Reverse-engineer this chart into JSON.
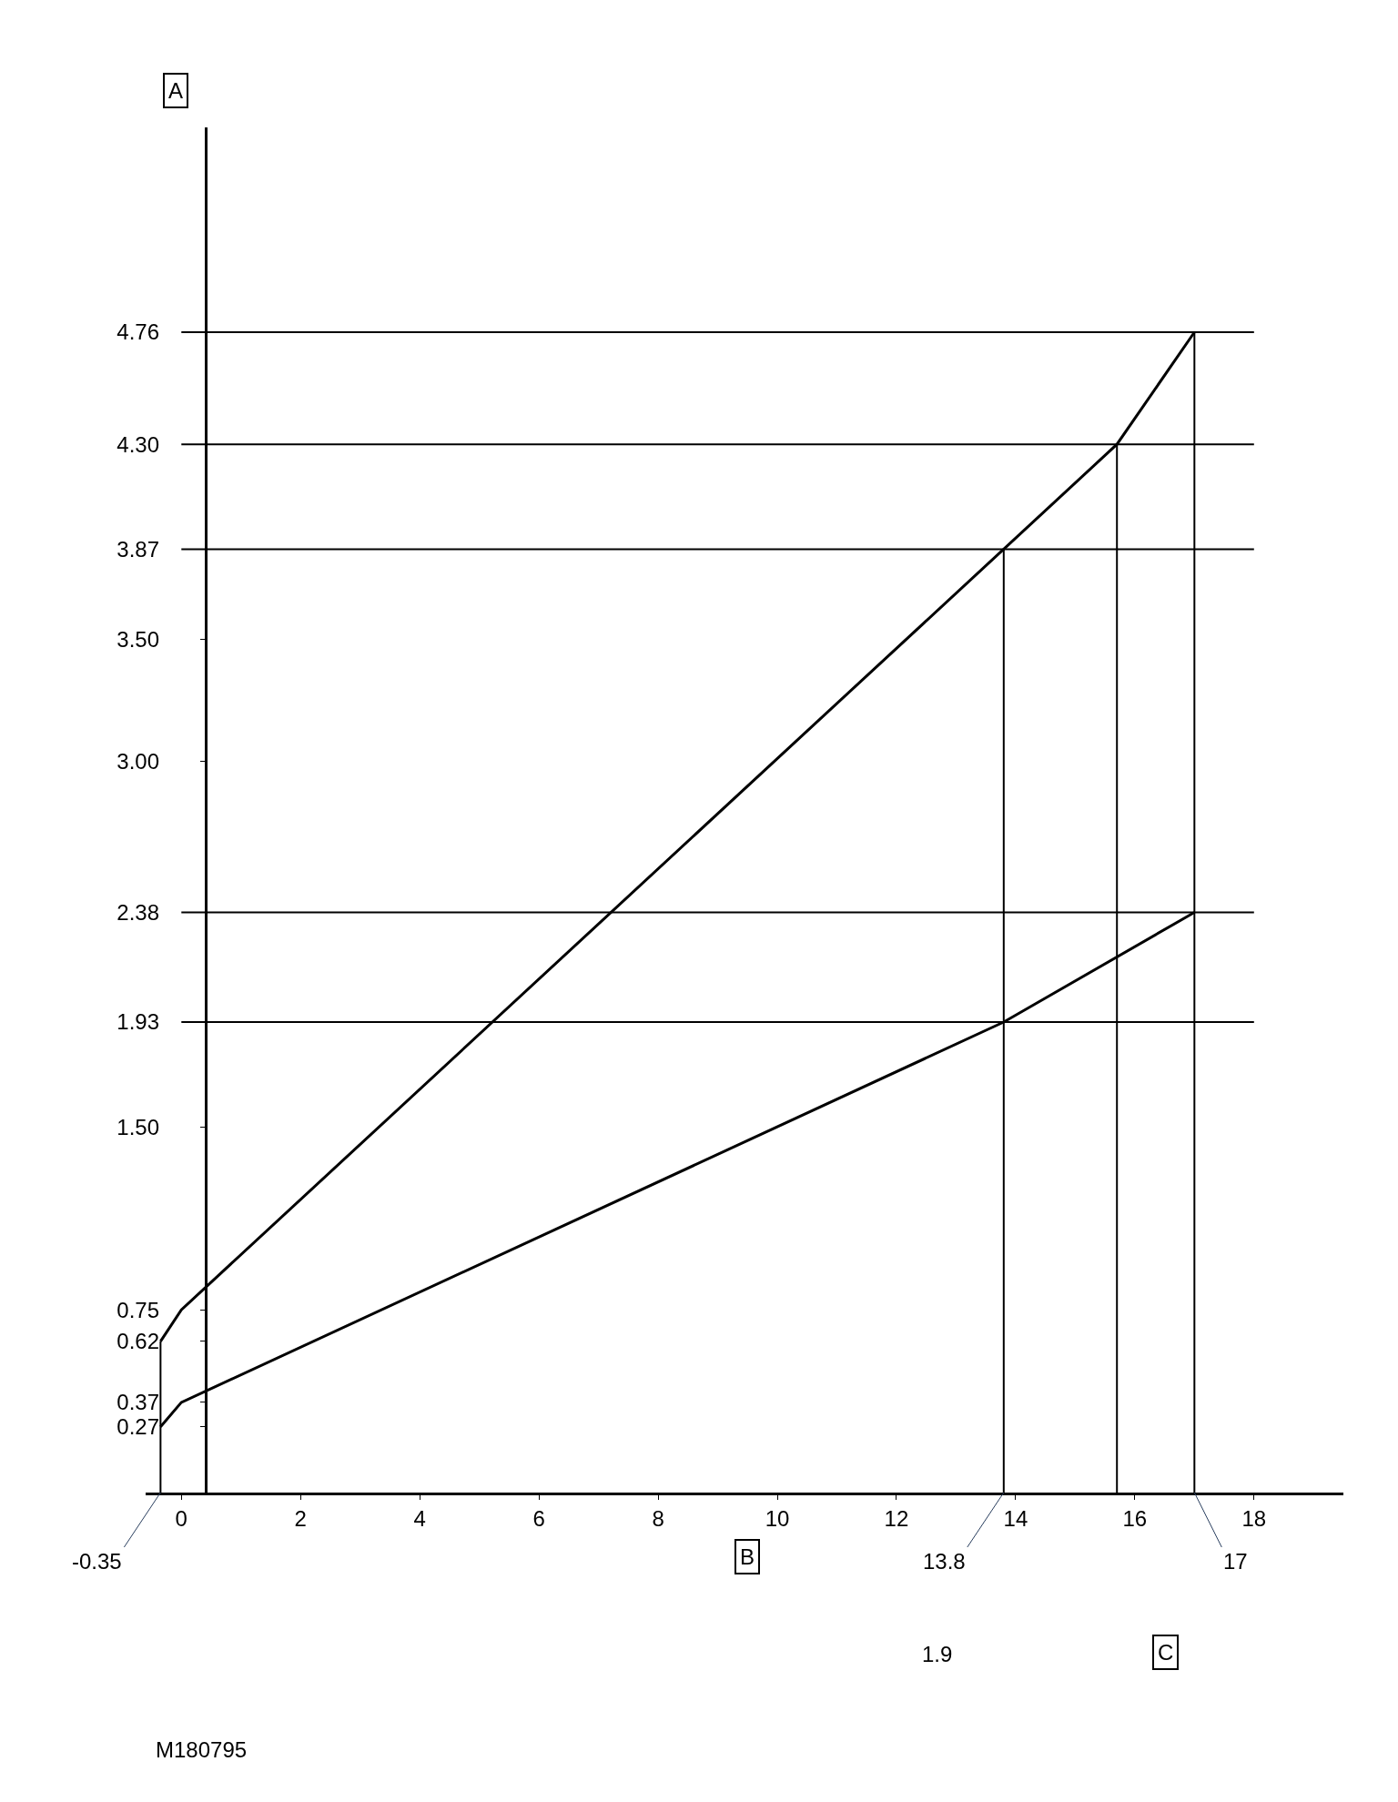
{
  "chart_data": {
    "type": "line",
    "xlabel": "B",
    "ylabel": "A",
    "series": [
      {
        "color": "#000000",
        "x": [
          -0.35,
          0,
          13.8,
          15.7,
          17
        ],
        "values": [
          0.62,
          0.75,
          3.87,
          4.3,
          4.76
        ]
      },
      {
        "color": "#000000",
        "x": [
          -0.35,
          0,
          13.8,
          17
        ],
        "values": [
          0.27,
          0.37,
          1.93,
          2.38
        ]
      }
    ],
    "xlim": [
      -0.6,
      19.5
    ],
    "ylim": [
      0,
      5.6
    ],
    "xticks": [
      0,
      2,
      4,
      6,
      8,
      10,
      12,
      14,
      16,
      18
    ],
    "yticks": [
      {
        "value": 0.27,
        "label": "0.27"
      },
      {
        "value": 0.37,
        "label": "0.37"
      },
      {
        "value": 0.62,
        "label": "0.62"
      },
      {
        "value": 0.75,
        "label": "0.75"
      },
      {
        "value": 1.5,
        "label": "1.50"
      },
      {
        "value": 1.93,
        "label": "1.93"
      },
      {
        "value": 2.38,
        "label": "2.38"
      },
      {
        "value": 3.0,
        "label": "3.00"
      },
      {
        "value": 3.5,
        "label": "3.50"
      },
      {
        "value": 3.87,
        "label": "3.87"
      },
      {
        "value": 4.3,
        "label": "4.30"
      },
      {
        "value": 4.76,
        "label": "4.76"
      }
    ],
    "ref_lines": [
      {
        "axis": "y",
        "value": 4.76,
        "color": "#000000"
      },
      {
        "axis": "y",
        "value": 4.3,
        "color": "#000000"
      },
      {
        "axis": "y",
        "value": 3.87,
        "color": "#000000"
      },
      {
        "axis": "y",
        "value": 2.38,
        "color": "#000000"
      },
      {
        "axis": "y",
        "value": 1.93,
        "color": "#000000"
      },
      {
        "axis": "x",
        "value": -0.35,
        "color": "#000000"
      },
      {
        "axis": "x",
        "value": 13.8,
        "color": "#000000"
      },
      {
        "axis": "x",
        "value": 15.7,
        "color": "#000000"
      },
      {
        "axis": "x",
        "value": 17,
        "color": "#000000"
      }
    ],
    "annotations": [
      {
        "text": "-0.35",
        "x": -0.35,
        "y": 0
      },
      {
        "text": "13.8",
        "x": 13.8,
        "y": 0
      },
      {
        "text": "17",
        "x": 17,
        "y": 0
      },
      "1.9",
      "C",
      "M180795"
    ],
    "marker": "none",
    "line_style": "solid"
  }
}
